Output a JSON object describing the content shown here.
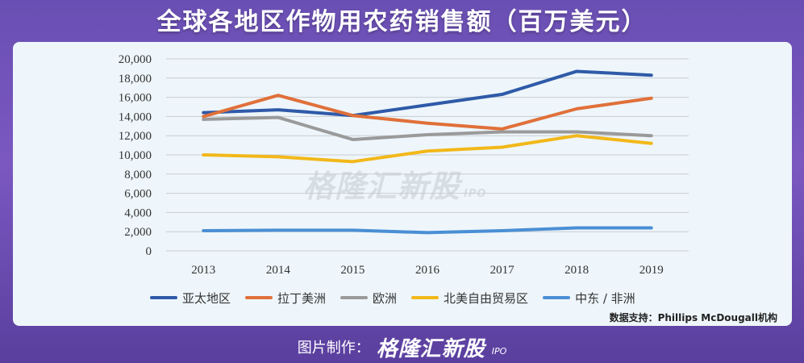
{
  "header": {
    "title": "全球各地区作物用农药销售额（百万美元）"
  },
  "watermark": {
    "brand": "格隆汇新股",
    "sub": "IPO"
  },
  "source": "数据支持：Phillips McDougall机构",
  "footer": {
    "label": "图片制作：",
    "brand": "格隆汇新股",
    "sub": "IPO"
  },
  "chart_data": {
    "type": "line",
    "title": "全球各地区作物用农药销售额（百万美元）",
    "xlabel": "",
    "ylabel": "",
    "categories": [
      "2013",
      "2014",
      "2015",
      "2016",
      "2017",
      "2018",
      "2019"
    ],
    "ylim": [
      0,
      20000
    ],
    "yticks": [
      0,
      2000,
      4000,
      6000,
      8000,
      10000,
      12000,
      14000,
      16000,
      18000,
      20000
    ],
    "ytick_labels": [
      "0",
      "2,000",
      "4,000",
      "6,000",
      "8,000",
      "10,000",
      "12,000",
      "14,000",
      "16,000",
      "18,000",
      "20,000"
    ],
    "legend_position": "bottom",
    "series": [
      {
        "name": "亚太地区",
        "color": "#2f5aa8",
        "values": [
          14400,
          14700,
          14100,
          15200,
          16300,
          18700,
          18300
        ]
      },
      {
        "name": "拉丁美洲",
        "color": "#e0703a",
        "values": [
          14000,
          16200,
          14100,
          13300,
          12700,
          14800,
          15900
        ]
      },
      {
        "name": "欧洲",
        "color": "#9a9a9a",
        "values": [
          13700,
          13900,
          11600,
          12100,
          12400,
          12400,
          12000
        ]
      },
      {
        "name": "北美自由贸易区",
        "color": "#f2b81a",
        "values": [
          10000,
          9800,
          9300,
          10400,
          10800,
          12000,
          11200
        ]
      },
      {
        "name": "中东 / 非洲",
        "color": "#4a8fd4",
        "values": [
          2100,
          2150,
          2150,
          1900,
          2100,
          2400,
          2400
        ]
      }
    ]
  }
}
